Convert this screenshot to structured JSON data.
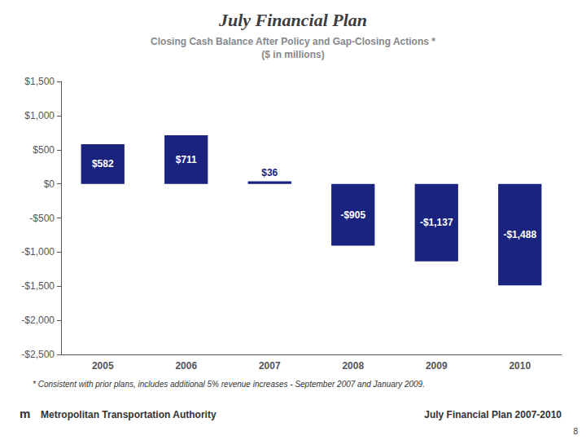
{
  "chart_data": {
    "type": "bar",
    "title": "July Financial Plan",
    "subtitle": [
      "Closing Cash Balance After Policy and Gap-Closing Actions *",
      "($ in millions)"
    ],
    "categories": [
      "2005",
      "2006",
      "2007",
      "2008",
      "2009",
      "2010"
    ],
    "values": [
      582,
      711,
      36,
      -905,
      -1137,
      -1488
    ],
    "value_labels": [
      "$582",
      "$711",
      "$36",
      "-$905",
      "-$1,137",
      "-$1,488"
    ],
    "data_labels": true,
    "color": "#1a237e",
    "ylim": [
      -2500,
      1500
    ],
    "yticks": [
      {
        "value": -2500,
        "label": "-$2,500"
      },
      {
        "value": -2000,
        "label": "-$2,000"
      },
      {
        "value": -1500,
        "label": "-$1,500"
      },
      {
        "value": -1000,
        "label": "-$1,000"
      },
      {
        "value": -500,
        "label": "-$500"
      },
      {
        "value": 0,
        "label": "$0"
      },
      {
        "value": 500,
        "label": "$500"
      },
      {
        "value": 1000,
        "label": "$1,000"
      },
      {
        "value": 1500,
        "label": "$1,500"
      }
    ],
    "grid": false,
    "annotations": [
      "* Consistent with prior plans, includes additional 5% revenue increases - September 2007 and January 2009.",
      "m",
      "Metropolitan Transportation Authority",
      "July Financial Plan 2007-2010",
      "8"
    ]
  }
}
